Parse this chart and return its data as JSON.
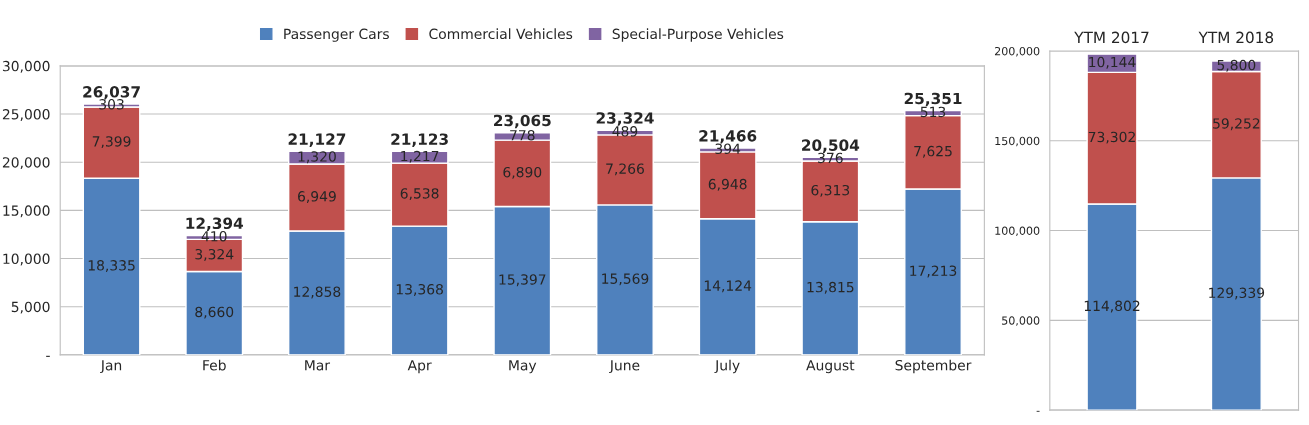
{
  "chart_data": [
    {
      "type": "bar",
      "stacked": true,
      "legend": "top",
      "grid": "y",
      "categories": [
        "Jan",
        "Feb",
        "Mar",
        "Apr",
        "May",
        "June",
        "July",
        "August",
        "September"
      ],
      "series": [
        {
          "name": "Passenger Cars",
          "color": "#4f81bd",
          "values": [
            18335,
            8660,
            12858,
            13368,
            15397,
            15569,
            14124,
            13815,
            17213
          ],
          "value_labels": [
            "18,335",
            "8,660",
            "12,858",
            "13,368",
            "15,397",
            "15,569",
            "14,124",
            "13,815",
            "17,213"
          ]
        },
        {
          "name": "Commercial Vehicles",
          "color": "#c0504d",
          "values": [
            7399,
            3324,
            6949,
            6538,
            6890,
            7266,
            6948,
            6313,
            7625
          ],
          "value_labels": [
            "7,399",
            "3,324",
            "6,949",
            "6,538",
            "6,890",
            "7,266",
            "6,948",
            "6,313",
            "7,625"
          ]
        },
        {
          "name": "Special-Purpose Vehicles",
          "color": "#8064a2",
          "values": [
            303,
            410,
            1320,
            1217,
            778,
            489,
            394,
            376,
            513
          ],
          "value_labels": [
            "303",
            "410",
            "1,320",
            "1,217",
            "778",
            "489",
            "394",
            "376",
            "513"
          ]
        }
      ],
      "totals": [
        "26,037",
        "12,394",
        "21,127",
        "21,123",
        "23,065",
        "23,324",
        "21,466",
        "20,504",
        "25,351"
      ],
      "ylim": [
        0,
        30000
      ],
      "yticks": [
        {
          "value": 0,
          "label": "-"
        },
        {
          "value": 5000,
          "label": "5,000"
        },
        {
          "value": 10000,
          "label": "10,000"
        },
        {
          "value": 15000,
          "label": "15,000"
        },
        {
          "value": 20000,
          "label": "20,000"
        },
        {
          "value": 25000,
          "label": "25,000"
        },
        {
          "value": 30000,
          "label": "30,000"
        }
      ]
    },
    {
      "type": "bar",
      "stacked": true,
      "grid": "y",
      "categories": [
        "YTM 2017",
        "YTM 2018"
      ],
      "series": [
        {
          "color": "#4f81bd",
          "values": [
            114802,
            129339
          ],
          "value_labels": [
            "114,802",
            "129,339"
          ]
        },
        {
          "color": "#c0504d",
          "values": [
            73302,
            59252
          ],
          "value_labels": [
            "73,302",
            "59,252"
          ]
        },
        {
          "color": "#8064a2",
          "values": [
            10144,
            5800
          ],
          "value_labels": [
            "10,144",
            "5,800"
          ]
        }
      ],
      "ylim": [
        0,
        200000
      ],
      "yticks": [
        {
          "value": 0,
          "label": "-"
        },
        {
          "value": 50000,
          "label": "50,000"
        },
        {
          "value": 100000,
          "label": "100,000"
        },
        {
          "value": 150000,
          "label": "150,000"
        },
        {
          "value": 200000,
          "label": "200,000"
        }
      ]
    }
  ]
}
